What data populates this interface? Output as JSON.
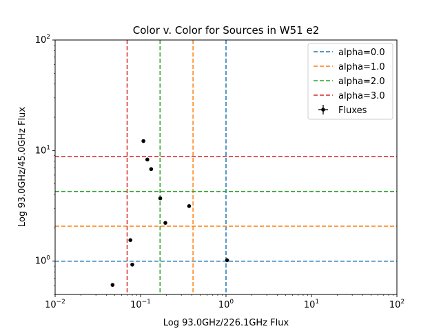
{
  "chart_data": {
    "type": "scatter",
    "title": "Color v. Color for Sources in W51 e2",
    "xlabel": "Log 93.0GHz/226.1GHz Flux",
    "ylabel": "Log 93.0GHz/45.0GHz Flux",
    "xscale": "log",
    "yscale": "log",
    "xlim": [
      0.01,
      100
    ],
    "ylim": [
      0.5,
      100
    ],
    "grid": false,
    "legend_placement": "top-right",
    "x_ticks": [
      {
        "value": 0.01,
        "base": "10",
        "exp": "−2"
      },
      {
        "value": 0.1,
        "base": "10",
        "exp": "−1"
      },
      {
        "value": 1,
        "base": "10",
        "exp": "0"
      },
      {
        "value": 10,
        "base": "10",
        "exp": "1"
      },
      {
        "value": 100,
        "base": "10",
        "exp": "2"
      }
    ],
    "y_ticks": [
      {
        "value": 1,
        "base": "10",
        "exp": "0"
      },
      {
        "value": 10,
        "base": "10",
        "exp": "1"
      },
      {
        "value": 100,
        "base": "10",
        "exp": "2"
      }
    ],
    "reference_lines": [
      {
        "name": "alpha=0.0",
        "color": "#1f77b4",
        "x": 1.0,
        "y": 1.0
      },
      {
        "name": "alpha=1.0",
        "color": "#ff7f0e",
        "x": 0.411,
        "y": 2.07
      },
      {
        "name": "alpha=2.0",
        "color": "#2ca02c",
        "x": 0.169,
        "y": 4.27
      },
      {
        "name": "alpha=3.0",
        "color": "#d62728",
        "x": 0.0696,
        "y": 8.85
      }
    ],
    "series": [
      {
        "name": "Fluxes",
        "color": "#000000",
        "points": [
          {
            "x": 0.047,
            "y": 0.61
          },
          {
            "x": 0.08,
            "y": 0.93
          },
          {
            "x": 0.076,
            "y": 1.55
          },
          {
            "x": 0.195,
            "y": 2.22
          },
          {
            "x": 0.17,
            "y": 3.7
          },
          {
            "x": 0.37,
            "y": 3.15
          },
          {
            "x": 0.133,
            "y": 6.8
          },
          {
            "x": 0.12,
            "y": 8.3
          },
          {
            "x": 0.108,
            "y": 12.2
          },
          {
            "x": 1.03,
            "y": 1.02
          }
        ]
      }
    ]
  }
}
